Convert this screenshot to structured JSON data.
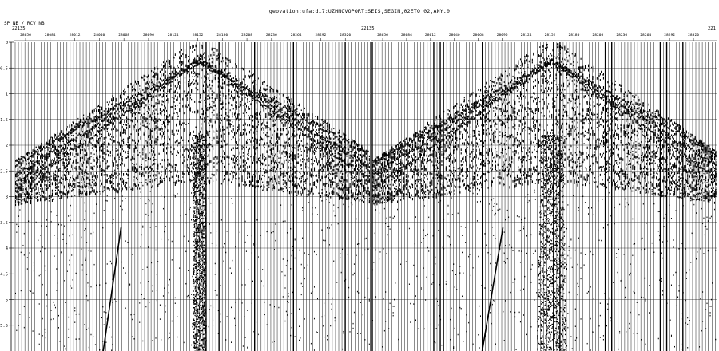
{
  "title": "geovation:ufa:di7:UZHNOVOPORT:SEIS,SEGIN,02ETO 02,ANY.0",
  "header_label": "SP NB    / RCV NB",
  "shot_labels": [
    "22135",
    "22135",
    "221"
  ],
  "receiver_ticks": [
    "28056",
    "28084",
    "28012",
    "28040",
    "28068",
    "28096",
    "28124",
    "28152",
    "28180",
    "28208",
    "28236",
    "28264",
    "28292",
    "28320"
  ],
  "time_ticks": [
    "0",
    "0.5",
    "1",
    "1.5",
    "2",
    "2.5",
    "3",
    "3.5",
    "4",
    "4.5",
    "5",
    "5.5"
  ],
  "time_range": [
    0,
    6.0
  ],
  "panels": 2,
  "colors": {
    "trace": "#000000",
    "background": "#ffffff"
  }
}
